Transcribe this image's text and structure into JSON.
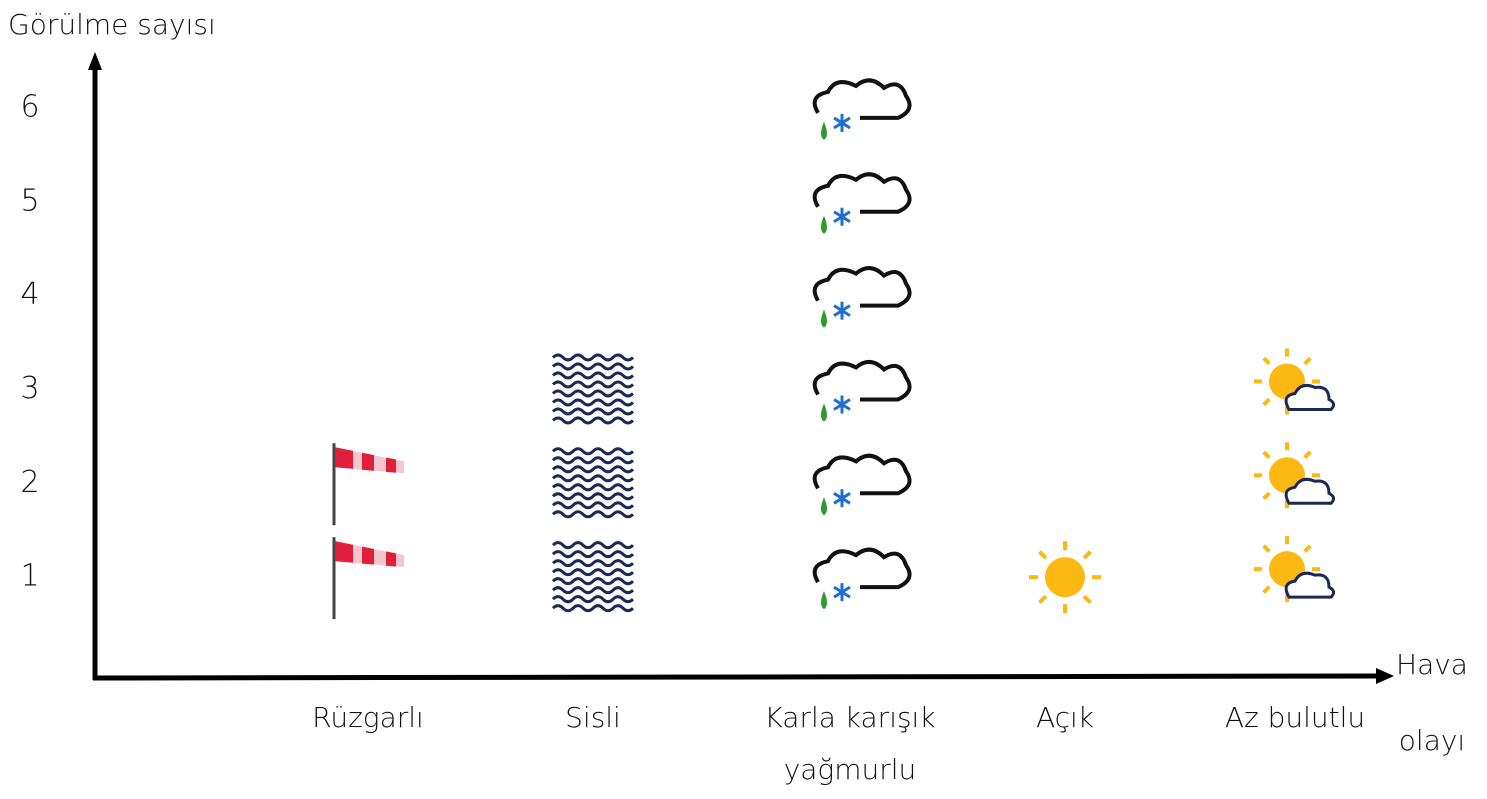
{
  "chart_data": {
    "type": "pictograph",
    "y_label": "Görülme sayısı",
    "x_label": "Hava olayı",
    "categories": [
      "Rüzgarlı",
      "Sisli",
      "Karla karışık yağmurlu",
      "Açık",
      "Az bulutlu"
    ],
    "values": [
      2,
      3,
      6,
      1,
      3
    ],
    "ylim": [
      0,
      6.5
    ],
    "yticks": [
      1,
      2,
      3,
      4,
      5,
      6
    ]
  }
}
